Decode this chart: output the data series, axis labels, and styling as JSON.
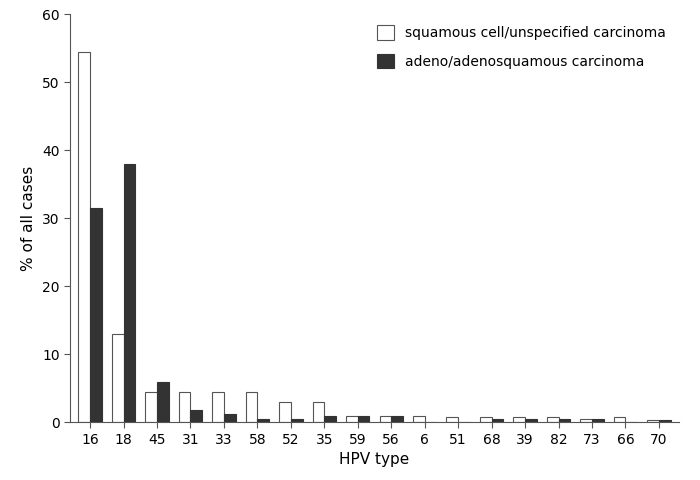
{
  "hpv_types": [
    "16",
    "18",
    "45",
    "31",
    "33",
    "58",
    "52",
    "35",
    "59",
    "56",
    "6",
    "51",
    "68",
    "39",
    "82",
    "73",
    "66",
    "70"
  ],
  "squamous": [
    54.5,
    13.0,
    4.5,
    4.5,
    4.5,
    4.5,
    3.0,
    3.0,
    1.0,
    1.0,
    1.0,
    0.8,
    0.8,
    0.8,
    0.8,
    0.5,
    0.8,
    0.3
  ],
  "adeno": [
    31.5,
    38.0,
    6.0,
    1.8,
    1.2,
    0.5,
    0.5,
    1.0,
    1.0,
    1.0,
    0.0,
    0.0,
    0.5,
    0.5,
    0.5,
    0.5,
    0.0,
    0.3
  ],
  "squamous_color": "#ffffff",
  "squamous_edgecolor": "#555555",
  "adeno_color": "#333333",
  "adeno_edgecolor": "#333333",
  "ylabel": "% of all cases",
  "xlabel": "HPV type",
  "ylim": [
    0,
    60
  ],
  "yticks": [
    0,
    10,
    20,
    30,
    40,
    50,
    60
  ],
  "legend_squamous": "squamous cell/unspecified carcinoma",
  "legend_adeno": "adeno/adenosquamous carcinoma",
  "bar_width": 0.35,
  "background_color": "#ffffff"
}
